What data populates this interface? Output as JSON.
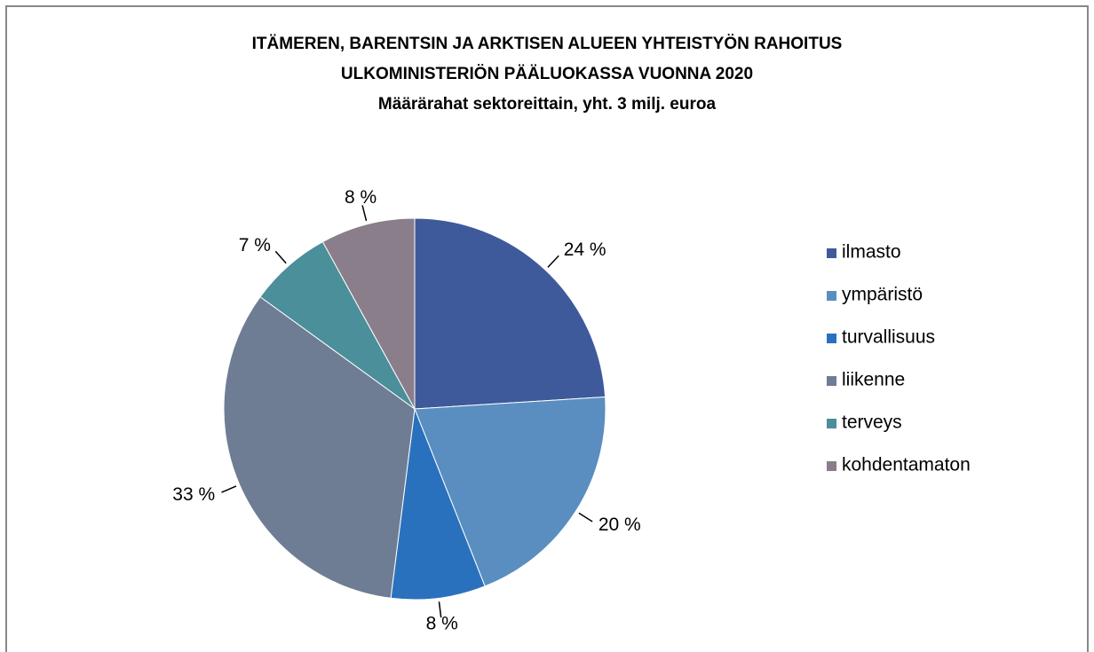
{
  "chart_data": {
    "type": "pie",
    "title": [
      "ITÄMEREN, BARENTSIN JA ARKTISEN ALUEEN YHTEISTYÖN RAHOITUS",
      "ULKOMINISTERIÖN PÄÄLUOKASSA VUONNA 2020"
    ],
    "subtitle": "Määrärahat sektoreittain, yht. 3 milj. euroa",
    "categories": [
      "ilmasto",
      "ympäristö",
      "turvallisuus",
      "liikenne",
      "terveys",
      "kohdentamaton"
    ],
    "values": [
      24,
      20,
      8,
      33,
      7,
      8
    ],
    "value_labels": [
      "24 %",
      "20 %",
      "8 %",
      "33 %",
      "7 %",
      "8 %"
    ],
    "colors": [
      "#3f5a9b",
      "#5a8ec0",
      "#2a71bd",
      "#6e7d93",
      "#4a8f99",
      "#8a7e8b"
    ],
    "legend": "right"
  }
}
